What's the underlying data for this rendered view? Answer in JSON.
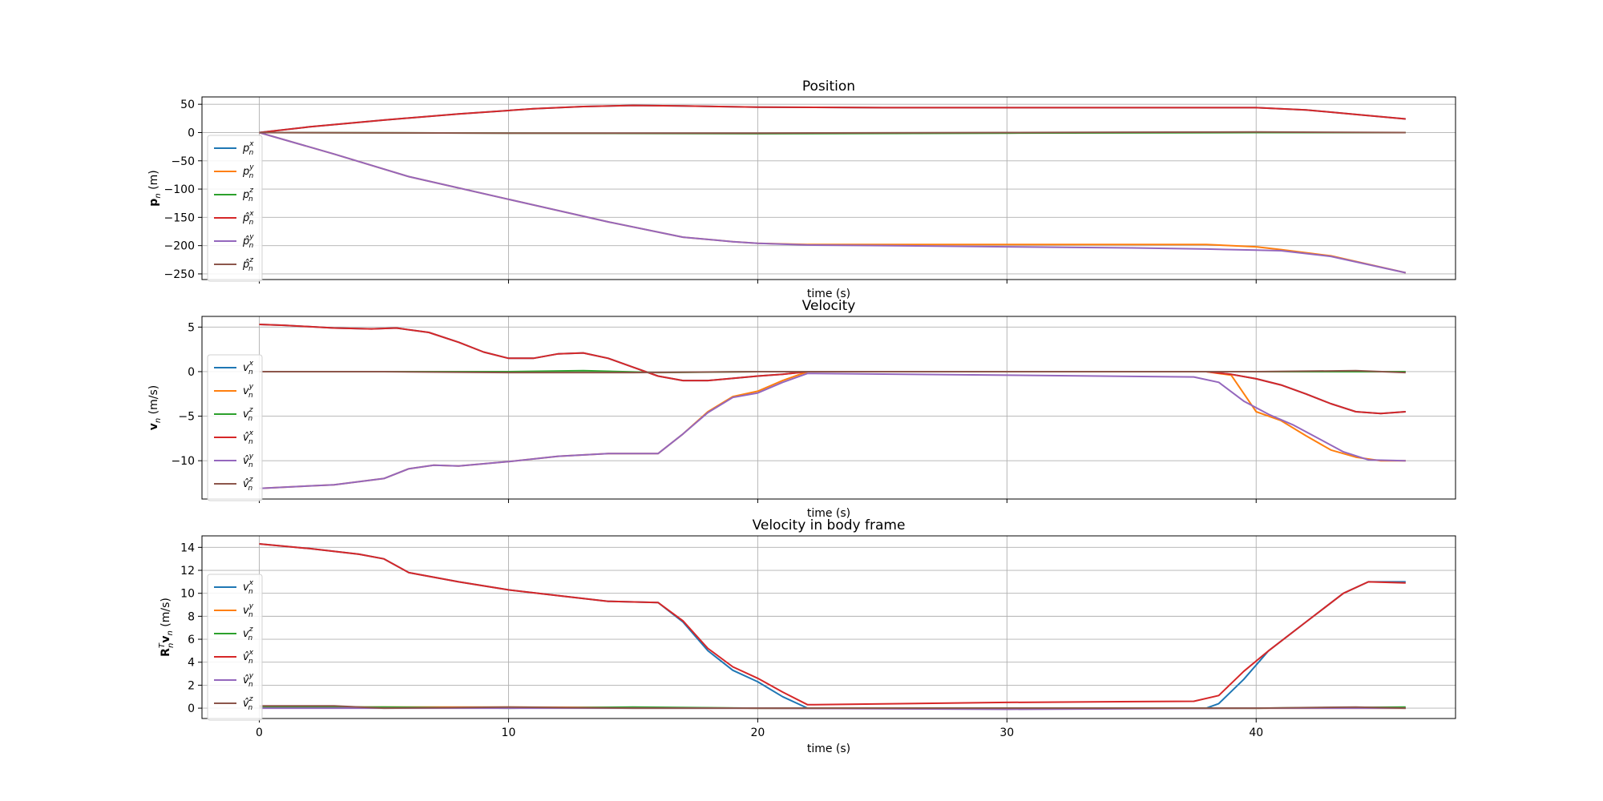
{
  "colors": [
    "#1f77b4",
    "#ff7f0e",
    "#2ca02c",
    "#d62728",
    "#9467bd",
    "#8c564b"
  ],
  "chart_data": [
    {
      "type": "line",
      "title": "Position",
      "xlabel": "time (s)",
      "ylabel": "p_n (m)",
      "ylabel_parts": {
        "bold": "p",
        "sub": "n",
        "rest": " (m)"
      },
      "xlim": [
        -2.3,
        48.0
      ],
      "ylim": [
        -260,
        63
      ],
      "xticks": [
        0,
        10,
        20,
        30,
        40
      ],
      "yticks": [
        50,
        0,
        -50,
        -100,
        -150,
        -200,
        -250
      ],
      "ytick_labels": [
        "50",
        "0",
        "−50",
        "−100",
        "−150",
        "−200",
        "−250"
      ],
      "grid": true,
      "legend": "left",
      "series": [
        {
          "name": "p_n^x",
          "base": "p",
          "sup": "x",
          "hat": false,
          "x": [
            0,
            2,
            5,
            8,
            11,
            13,
            15,
            17,
            20,
            25,
            30,
            35,
            40,
            42,
            44,
            46
          ],
          "y": [
            0,
            10,
            22,
            33,
            42,
            46,
            48,
            47,
            45,
            44,
            44,
            44,
            44,
            40,
            32,
            24
          ]
        },
        {
          "name": "p_n^y",
          "base": "p",
          "sup": "y",
          "hat": false,
          "x": [
            0,
            3,
            6,
            10,
            14,
            17,
            19,
            20,
            22,
            25,
            30,
            35,
            38,
            40,
            41,
            43,
            46
          ],
          "y": [
            0,
            -38,
            -78,
            -118,
            -158,
            -185,
            -193,
            -196,
            -198,
            -198,
            -198,
            -198,
            -198,
            -202,
            -207,
            -218,
            -248
          ]
        },
        {
          "name": "p_n^z",
          "base": "p",
          "sup": "z",
          "hat": false,
          "x": [
            0,
            10,
            20,
            30,
            40,
            46
          ],
          "y": [
            0,
            -1,
            -2,
            -1,
            0,
            0
          ]
        },
        {
          "name": "p̂_n^x",
          "base": "p",
          "sup": "x",
          "hat": true,
          "x": [
            0,
            2,
            5,
            8,
            11,
            13,
            15,
            17,
            20,
            25,
            30,
            35,
            40,
            42,
            44,
            46
          ],
          "y": [
            0,
            10,
            22,
            33,
            42,
            46,
            48,
            47,
            45,
            44,
            44,
            44,
            44,
            40,
            32,
            24
          ]
        },
        {
          "name": "p̂_n^y",
          "base": "p",
          "sup": "y",
          "hat": true,
          "x": [
            0,
            3,
            6,
            10,
            14,
            17,
            19,
            20,
            22,
            25,
            30,
            35,
            38,
            40,
            41,
            43,
            46
          ],
          "y": [
            0,
            -38,
            -78,
            -118,
            -158,
            -185,
            -193,
            -196,
            -199,
            -200,
            -202,
            -204,
            -206,
            -208,
            -209,
            -219,
            -248
          ]
        },
        {
          "name": "p̂_n^z",
          "base": "p",
          "sup": "z",
          "hat": true,
          "x": [
            0,
            10,
            20,
            30,
            40,
            46
          ],
          "y": [
            0,
            -1,
            -1,
            0,
            1,
            0
          ]
        }
      ]
    },
    {
      "type": "line",
      "title": "Velocity",
      "xlabel": "time (s)",
      "ylabel": "v_n (m/s)",
      "ylabel_parts": {
        "bold": "v",
        "sub": "n",
        "rest": " (m/s)"
      },
      "xlim": [
        -2.3,
        48.0
      ],
      "ylim": [
        -14.3,
        6.2
      ],
      "xticks": [
        0,
        10,
        20,
        30,
        40
      ],
      "yticks": [
        5,
        0,
        -5,
        -10
      ],
      "ytick_labels": [
        "5",
        "0",
        "−5",
        "−10"
      ],
      "grid": true,
      "legend": "left",
      "series": [
        {
          "name": "v_n^x",
          "base": "v",
          "sup": "x",
          "hat": false,
          "x": [
            0,
            1,
            3,
            4.5,
            5.5,
            6.8,
            8,
            9,
            10,
            11,
            12,
            13,
            14,
            15,
            16,
            17,
            18,
            20,
            21,
            22,
            30,
            38,
            39,
            40,
            41,
            42,
            43,
            44,
            45,
            46
          ],
          "y": [
            5.3,
            5.2,
            4.9,
            4.8,
            4.9,
            4.4,
            3.3,
            2.2,
            1.5,
            1.5,
            2.0,
            2.1,
            1.5,
            0.5,
            -0.5,
            -1.0,
            -1.0,
            -0.5,
            -0.3,
            0,
            0,
            0,
            -0.3,
            -0.8,
            -1.5,
            -2.5,
            -3.6,
            -4.5,
            -4.7,
            -4.5
          ]
        },
        {
          "name": "v_n^y",
          "base": "v",
          "sup": "y",
          "hat": false,
          "x": [
            0,
            3,
            5,
            6,
            7,
            8,
            10,
            12,
            14,
            16,
            17,
            18,
            19,
            20,
            21,
            22,
            30,
            38,
            39,
            40,
            41,
            42,
            43,
            44,
            45,
            46
          ],
          "y": [
            -13.1,
            -12.7,
            -12.0,
            -10.9,
            -10.5,
            -10.6,
            -10.1,
            -9.5,
            -9.2,
            -9.2,
            -7.0,
            -4.5,
            -2.8,
            -2.2,
            -1.0,
            0,
            0,
            0,
            -0.4,
            -4.5,
            -5.5,
            -7.2,
            -8.8,
            -9.6,
            -10.0,
            -10.0
          ]
        },
        {
          "name": "v_n^z",
          "base": "v",
          "sup": "z",
          "hat": false,
          "x": [
            0,
            5,
            10,
            13,
            16,
            20,
            30,
            40,
            46
          ],
          "y": [
            0,
            0,
            0,
            0.1,
            -0.1,
            0,
            0,
            0,
            0
          ]
        },
        {
          "name": "v̂_n^x",
          "base": "v",
          "sup": "x",
          "hat": true,
          "x": [
            0,
            1,
            3,
            4.5,
            5.5,
            6.8,
            8,
            9,
            10,
            11,
            12,
            13,
            14,
            15,
            16,
            17,
            18,
            20,
            21,
            22,
            30,
            38,
            39,
            40,
            41,
            42,
            43,
            44,
            45,
            46
          ],
          "y": [
            5.3,
            5.2,
            4.9,
            4.8,
            4.9,
            4.4,
            3.3,
            2.2,
            1.5,
            1.5,
            2.0,
            2.1,
            1.5,
            0.5,
            -0.5,
            -1.0,
            -1.0,
            -0.5,
            -0.3,
            0,
            0,
            0,
            -0.3,
            -0.8,
            -1.5,
            -2.5,
            -3.6,
            -4.5,
            -4.7,
            -4.5
          ]
        },
        {
          "name": "v̂_n^y",
          "base": "v",
          "sup": "y",
          "hat": true,
          "x": [
            0,
            3,
            5,
            6,
            7,
            8,
            10,
            12,
            14,
            16,
            17,
            18,
            19,
            20,
            21,
            22,
            30,
            37.5,
            38.5,
            39.5,
            40.5,
            41.5,
            42.5,
            43.5,
            44.5,
            46
          ],
          "y": [
            -13.1,
            -12.7,
            -12.0,
            -10.9,
            -10.5,
            -10.6,
            -10.1,
            -9.5,
            -9.2,
            -9.2,
            -7.0,
            -4.6,
            -2.9,
            -2.4,
            -1.2,
            -0.2,
            -0.4,
            -0.6,
            -1.2,
            -3.3,
            -4.8,
            -6.0,
            -7.5,
            -9.0,
            -9.9,
            -10.0
          ]
        },
        {
          "name": "v̂_n^z",
          "base": "v",
          "sup": "z",
          "hat": true,
          "x": [
            0,
            5,
            10,
            15,
            20,
            30,
            40,
            44,
            46
          ],
          "y": [
            0,
            0,
            -0.1,
            -0.1,
            0,
            0,
            0,
            0.1,
            -0.1
          ]
        }
      ]
    },
    {
      "type": "line",
      "title": "Velocity in body frame",
      "xlabel": "time (s)",
      "ylabel": "R_n^T v_n (m/s)",
      "ylabel_parts": {
        "bold": "R",
        "sub": "n",
        "sup": "T",
        "bold2": "v",
        "sub2": "n",
        "rest": " (m/s)"
      },
      "xlim": [
        -2.3,
        48.0
      ],
      "ylim": [
        -0.9,
        15.0
      ],
      "xticks": [
        0,
        10,
        20,
        30,
        40
      ],
      "xtick_labels": [
        "0",
        "10",
        "20",
        "30",
        "40"
      ],
      "yticks": [
        14,
        12,
        10,
        8,
        6,
        4,
        2,
        0
      ],
      "ytick_labels": [
        "14",
        "12",
        "10",
        "8",
        "6",
        "4",
        "2",
        "0"
      ],
      "grid": true,
      "legend": "left",
      "series": [
        {
          "name": "v_n^x",
          "base": "v",
          "sup": "x",
          "hat": false,
          "x": [
            0,
            2,
            4,
            5,
            6,
            7,
            8,
            10,
            12,
            14,
            16,
            17,
            18,
            19,
            20,
            21,
            22,
            30,
            38,
            38.5,
            39.5,
            40.5,
            42,
            43.5,
            44.5,
            46
          ],
          "y": [
            14.3,
            13.9,
            13.4,
            13.0,
            11.8,
            11.4,
            11.0,
            10.3,
            9.8,
            9.3,
            9.2,
            7.5,
            5.0,
            3.3,
            2.3,
            1.0,
            0,
            0,
            0,
            0.4,
            2.5,
            5.0,
            7.5,
            10.0,
            11.0,
            11.0
          ]
        },
        {
          "name": "v_n^y",
          "base": "v",
          "sup": "y",
          "hat": false,
          "x": [
            0,
            10,
            20,
            30,
            40,
            46
          ],
          "y": [
            0.1,
            0.1,
            0,
            0,
            0,
            0
          ]
        },
        {
          "name": "v_n^z",
          "base": "v",
          "sup": "z",
          "hat": false,
          "x": [
            0,
            5,
            10,
            15,
            20,
            30,
            40,
            46
          ],
          "y": [
            0.1,
            0.1,
            0,
            0.1,
            0,
            0,
            0,
            0.1
          ]
        },
        {
          "name": "v̂_n^x",
          "base": "v",
          "sup": "x",
          "hat": true,
          "x": [
            0,
            2,
            4,
            5,
            6,
            7,
            8,
            10,
            12,
            14,
            16,
            17,
            18,
            19,
            20,
            21,
            22,
            30,
            37.5,
            38.5,
            39.5,
            40.5,
            42,
            43.5,
            44.5,
            46
          ],
          "y": [
            14.3,
            13.9,
            13.4,
            13.0,
            11.8,
            11.4,
            11.0,
            10.3,
            9.8,
            9.3,
            9.2,
            7.6,
            5.2,
            3.6,
            2.6,
            1.4,
            0.3,
            0.5,
            0.6,
            1.1,
            3.2,
            5.0,
            7.5,
            10.0,
            11.0,
            10.9
          ]
        },
        {
          "name": "v̂_n^y",
          "base": "v",
          "sup": "y",
          "hat": true,
          "x": [
            0,
            10,
            20,
            30,
            40,
            46
          ],
          "y": [
            0,
            0,
            0,
            -0.1,
            0,
            0
          ]
        },
        {
          "name": "v̂_n^z",
          "base": "v",
          "sup": "z",
          "hat": true,
          "x": [
            0,
            3,
            5,
            10,
            15,
            20,
            30,
            40,
            44,
            46
          ],
          "y": [
            0.2,
            0.2,
            0,
            0.1,
            0,
            0,
            0,
            0,
            0.1,
            0
          ]
        }
      ]
    }
  ]
}
